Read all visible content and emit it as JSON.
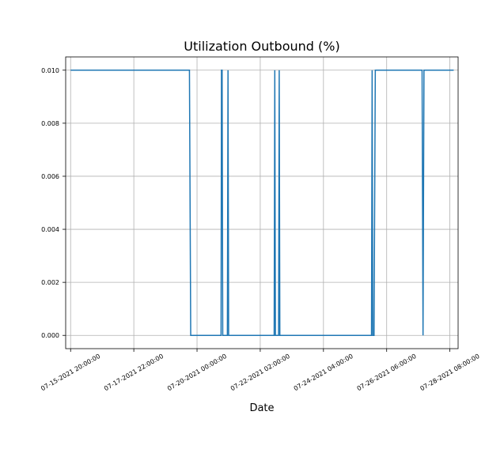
{
  "chart_data": {
    "type": "line",
    "title": "Utilization Outbound (%)",
    "xlabel": "Date",
    "ylabel": "",
    "ylim": [
      -0.0005,
      0.0105
    ],
    "xlim": [
      "07-15-2021 16:06:00",
      "07-28-2021 14:30:00"
    ],
    "grid": true,
    "x_ticks": [
      "07-15-2021 20:00:00",
      "07-17-2021 22:00:00",
      "07-20-2021 00:00:00",
      "07-22-2021 02:00:00",
      "07-24-2021 04:00:00",
      "07-26-2021 06:00:00",
      "07-28-2021 08:00:00"
    ],
    "y_ticks": [
      "0.000",
      "0.002",
      "0.004",
      "0.006",
      "0.008",
      "0.010"
    ],
    "series": [
      {
        "color": "#1f77b4",
        "points": [
          [
            "07-15-2021 20:00:00",
            0.01
          ],
          [
            "07-19-2021 18:00:00",
            0.01
          ],
          [
            "07-19-2021 19:00:00",
            0.0
          ],
          [
            "07-20-2021 19:00:00",
            0.0
          ],
          [
            "07-20-2021 19:20:00",
            0.01
          ],
          [
            "07-20-2021 19:50:00",
            0.01
          ],
          [
            "07-20-2021 20:20:00",
            0.0
          ],
          [
            "07-21-2021 00:00:00",
            0.0
          ],
          [
            "07-21-2021 00:30:00",
            0.01
          ],
          [
            "07-21-2021 01:00:00",
            0.0
          ],
          [
            "07-22-2021 13:00:00",
            0.0
          ],
          [
            "07-22-2021 13:30:00",
            0.01
          ],
          [
            "07-22-2021 14:00:00",
            0.0
          ],
          [
            "07-22-2021 16:30:00",
            0.0
          ],
          [
            "07-22-2021 17:00:00",
            0.01
          ],
          [
            "07-22-2021 17:30:00",
            0.0
          ],
          [
            "07-25-2021 18:00:00",
            0.0
          ],
          [
            "07-25-2021 18:30:00",
            0.01
          ],
          [
            "07-25-2021 19:00:00",
            0.0
          ],
          [
            "07-25-2021 20:00:00",
            0.0
          ],
          [
            "07-25-2021 21:00:00",
            0.01
          ],
          [
            "07-27-2021 10:00:00",
            0.01
          ],
          [
            "07-27-2021 10:45:00",
            0.0
          ],
          [
            "07-27-2021 11:30:00",
            0.01
          ],
          [
            "07-28-2021 11:00:00",
            0.01
          ]
        ]
      }
    ]
  }
}
